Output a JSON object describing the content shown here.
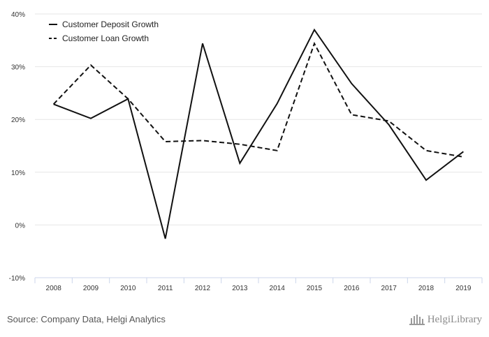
{
  "chart_data": {
    "type": "line",
    "categories": [
      "2008",
      "2009",
      "2010",
      "2011",
      "2012",
      "2013",
      "2014",
      "2015",
      "2016",
      "2017",
      "2018",
      "2019"
    ],
    "series": [
      {
        "name": "Customer Deposit Growth",
        "style": "solid",
        "values": [
          22.9,
          20.2,
          23.9,
          -2.6,
          34.4,
          11.7,
          23.0,
          37.0,
          26.8,
          19.0,
          8.5,
          13.9
        ]
      },
      {
        "name": "Customer Loan Growth",
        "style": "dashed",
        "values": [
          22.9,
          30.3,
          23.9,
          15.8,
          16.0,
          15.3,
          14.1,
          34.4,
          20.9,
          19.7,
          14.1,
          12.9
        ]
      }
    ],
    "ylim": [
      -10,
      40
    ],
    "yticks": [
      -10,
      0,
      10,
      20,
      30,
      40
    ],
    "ytick_labels": [
      "-10%",
      "0%",
      "10%",
      "20%",
      "30%",
      "40%"
    ],
    "legend_position": "top-left",
    "title": "",
    "xlabel": "",
    "ylabel": ""
  },
  "footer": {
    "source": "Source: Company Data, Helgi Analytics",
    "logo_text": "HelgiLibrary"
  },
  "colors": {
    "line": "#111111",
    "grid": "#e6e6e6",
    "axis": "#ccd6eb",
    "text": "#333333"
  }
}
